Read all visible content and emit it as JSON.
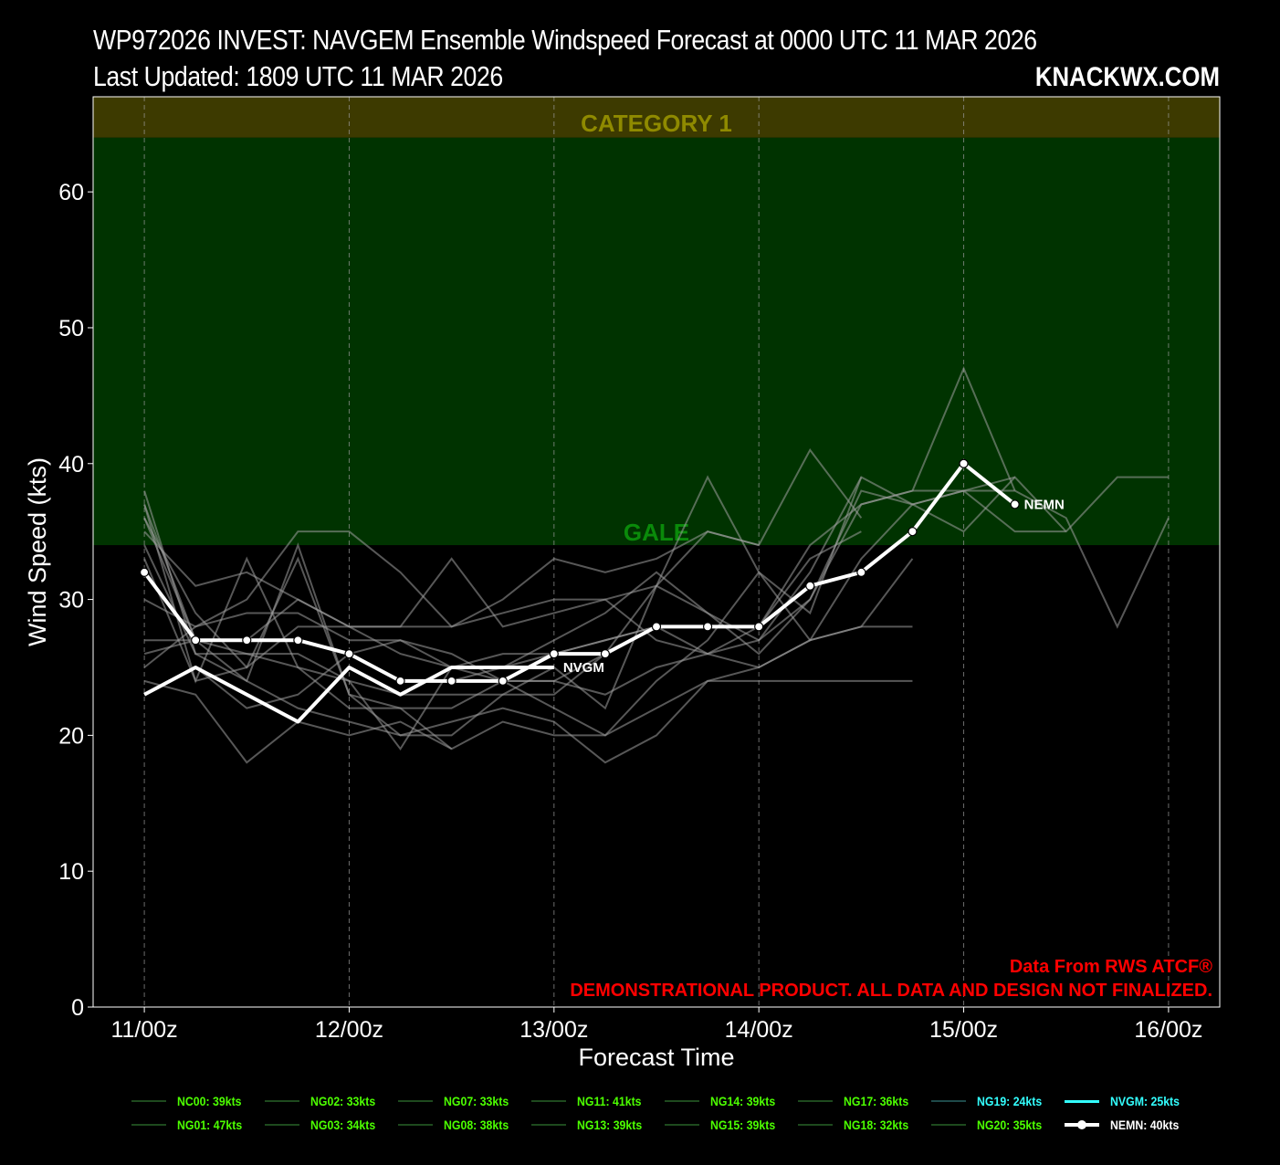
{
  "header": {
    "title_line1": "WP972026 INVEST: NAVGEM Ensemble Windspeed Forecast at 0000 UTC 11 MAR 2026",
    "title_line2": "Last Updated: 1809 UTC 11 MAR 2026",
    "brand": "KNACKWX.COM"
  },
  "chart_data": {
    "type": "line",
    "xlabel": "Forecast Time",
    "ylabel": "Wind Speed (kts)",
    "ylim": [
      0,
      67
    ],
    "xlim_hours": [
      -6,
      126
    ],
    "x_ticks": [
      {
        "hour": 0,
        "label": "11/00z"
      },
      {
        "hour": 24,
        "label": "12/00z"
      },
      {
        "hour": 48,
        "label": "13/00z"
      },
      {
        "hour": 72,
        "label": "14/00z"
      },
      {
        "hour": 96,
        "label": "15/00z"
      },
      {
        "hour": 120,
        "label": "16/00z"
      }
    ],
    "y_ticks": [
      0,
      10,
      20,
      30,
      40,
      50,
      60
    ],
    "grid": "vertical dashed",
    "bands": [
      {
        "label": "GALE",
        "from": 34,
        "to": 64,
        "color": "#003300",
        "label_color": "#0a8a0a"
      },
      {
        "label": "CATEGORY 1",
        "from": 64,
        "to": 67,
        "color": "#3d3a00",
        "label_color": "#8f8a00"
      }
    ],
    "ensemble_members": [
      {
        "x": [
          0,
          6,
          12,
          18,
          24,
          30,
          36,
          42,
          48,
          54,
          60,
          66,
          72,
          78,
          84,
          90
        ],
        "y": [
          38,
          26,
          26,
          26,
          24,
          23,
          23,
          23,
          23,
          26,
          28,
          28,
          28,
          31,
          32,
          35
        ]
      },
      {
        "x": [
          0,
          6,
          12,
          18,
          24,
          30,
          36,
          42,
          48,
          54,
          60,
          66,
          72,
          78,
          84,
          90,
          96,
          102
        ],
        "y": [
          36,
          27,
          27,
          27,
          26,
          24,
          24,
          25,
          26,
          27,
          28,
          28,
          28,
          34,
          37,
          38,
          47,
          38
        ]
      },
      {
        "x": [
          0,
          6,
          12,
          18,
          24,
          30,
          36,
          42,
          48,
          54,
          60,
          66,
          72,
          78,
          84
        ],
        "y": [
          37,
          24,
          33,
          25,
          24,
          19,
          25,
          26,
          26,
          27,
          28,
          26,
          28,
          33,
          35
        ]
      },
      {
        "x": [
          0,
          6,
          12,
          18,
          24,
          30,
          36,
          42,
          48,
          54,
          60,
          66,
          72,
          78,
          84,
          90,
          96,
          102
        ],
        "y": [
          35,
          31,
          32,
          30,
          28,
          26,
          25,
          25,
          27,
          29,
          32,
          29,
          26,
          30,
          37,
          38,
          38,
          39
        ]
      },
      {
        "x": [
          0,
          6,
          12,
          18,
          24,
          30,
          36,
          42,
          48,
          54,
          60,
          66,
          72,
          78,
          84,
          90,
          96,
          102,
          108,
          114,
          120
        ],
        "y": [
          36,
          29,
          25,
          28,
          28,
          28,
          33,
          28,
          29,
          30,
          31,
          29,
          27,
          30,
          38,
          37,
          38,
          35,
          35,
          39,
          39
        ]
      },
      {
        "x": [
          0,
          6,
          12,
          18,
          24,
          30,
          36,
          42,
          48,
          54,
          60,
          66,
          72,
          78,
          84,
          90,
          96,
          102,
          108,
          114,
          120
        ],
        "y": [
          37,
          27,
          27,
          30,
          28,
          28,
          28,
          29,
          30,
          30,
          27,
          26,
          27,
          32,
          39,
          37,
          38,
          38,
          36,
          28,
          36
        ]
      },
      {
        "x": [
          0,
          6,
          12,
          18,
          24,
          30,
          36,
          42,
          48,
          54,
          60,
          66,
          72,
          78,
          84,
          90
        ],
        "y": [
          24,
          23,
          18,
          21,
          20,
          21,
          19,
          21,
          20,
          20,
          22,
          24,
          24,
          24,
          24,
          24
        ]
      },
      {
        "x": [
          0,
          6,
          12,
          18,
          24,
          30,
          36,
          42,
          48,
          54,
          60,
          66,
          72
        ],
        "y": [
          25,
          28,
          30,
          35,
          35,
          32,
          28,
          30,
          33,
          32,
          33,
          35,
          34
        ]
      },
      {
        "x": [
          0,
          6,
          12,
          18,
          24,
          30,
          36,
          42,
          48,
          54,
          60,
          66,
          72,
          78,
          84
        ],
        "y": [
          26,
          27,
          26,
          25,
          22,
          22,
          22,
          24,
          24,
          26,
          31,
          35,
          34,
          41,
          36
        ]
      },
      {
        "x": [
          0,
          6,
          12,
          18,
          24,
          30,
          36,
          42,
          48,
          54,
          60,
          66,
          72,
          78,
          84,
          90
        ],
        "y": [
          30,
          28,
          29,
          29,
          27,
          27,
          25,
          24,
          22,
          20,
          24,
          27,
          32,
          27,
          28,
          33
        ]
      },
      {
        "x": [
          0,
          6,
          12,
          18,
          24,
          30,
          36,
          42,
          48,
          54,
          60,
          66,
          72,
          78,
          84,
          90,
          96,
          102,
          108
        ],
        "y": [
          27,
          27,
          24,
          22,
          21,
          20,
          21,
          22,
          21,
          18,
          20,
          24,
          25,
          27,
          33,
          37,
          35,
          39,
          35
        ]
      },
      {
        "x": [
          0,
          6,
          12,
          18,
          24,
          30,
          36,
          42,
          48,
          54,
          60,
          66,
          72,
          78,
          84,
          90
        ],
        "y": [
          23,
          25,
          22,
          23,
          26,
          27,
          26,
          24,
          24,
          23,
          25,
          26,
          25,
          27,
          28,
          28
        ]
      },
      {
        "x": [
          0,
          6,
          12,
          18,
          24,
          30,
          36
        ],
        "y": [
          34,
          26,
          24,
          34,
          23,
          22,
          19
        ]
      },
      {
        "x": [
          0,
          6,
          12,
          18,
          24,
          30,
          36,
          42,
          48,
          54,
          60,
          66,
          72,
          78,
          84
        ],
        "y": [
          33,
          24,
          25,
          33,
          23,
          20,
          20,
          23,
          25,
          22,
          31,
          39,
          32,
          29,
          39
        ]
      }
    ],
    "series": [
      {
        "name": "NVGM",
        "x": [
          0,
          6,
          12,
          18,
          24,
          30,
          36,
          42,
          48
        ],
        "y": [
          23,
          25,
          23,
          21,
          25,
          23,
          25,
          25,
          25
        ],
        "color": "#ffffff",
        "end_label": "NVGM"
      },
      {
        "name": "NEMN",
        "x": [
          0,
          6,
          12,
          18,
          24,
          30,
          36,
          42,
          48,
          54,
          60,
          66,
          72,
          78,
          84,
          90,
          96,
          102
        ],
        "y": [
          32,
          27,
          27,
          27,
          26,
          24,
          24,
          24,
          26,
          26,
          28,
          28,
          28,
          31,
          32,
          35,
          40,
          37
        ],
        "color": "#ffffff",
        "end_label": "NEMN"
      }
    ],
    "annotations": [
      {
        "text": "Data From RWS ATCF®",
        "color": "#ff0000"
      },
      {
        "text": "DEMONSTRATIONAL PRODUCT. ALL DATA AND DESIGN NOT FINALIZED.",
        "color": "#ff0000"
      }
    ],
    "legend": [
      {
        "label": "NC00: 39kts",
        "color": "#4cff00"
      },
      {
        "label": "NG01: 47kts",
        "color": "#4cff00"
      },
      {
        "label": "NG02: 33kts",
        "color": "#4cff00"
      },
      {
        "label": "NG03: 34kts",
        "color": "#4cff00"
      },
      {
        "label": "NG07: 33kts",
        "color": "#4cff00"
      },
      {
        "label": "NG08: 38kts",
        "color": "#4cff00"
      },
      {
        "label": "NG11: 41kts",
        "color": "#4cff00"
      },
      {
        "label": "NG13: 39kts",
        "color": "#4cff00"
      },
      {
        "label": "NG14: 39kts",
        "color": "#4cff00"
      },
      {
        "label": "NG15: 39kts",
        "color": "#4cff00"
      },
      {
        "label": "NG17: 36kts",
        "color": "#4cff00"
      },
      {
        "label": "NG18: 32kts",
        "color": "#4cff00"
      },
      {
        "label": "NG19: 24kts",
        "color": "#33ffff"
      },
      {
        "label": "NG20: 35kts",
        "color": "#4cff00"
      },
      {
        "label": "NVGM: 25kts",
        "color": "#33ffff"
      },
      {
        "label": "NEMN: 40kts",
        "color": "#ffffff"
      }
    ]
  }
}
